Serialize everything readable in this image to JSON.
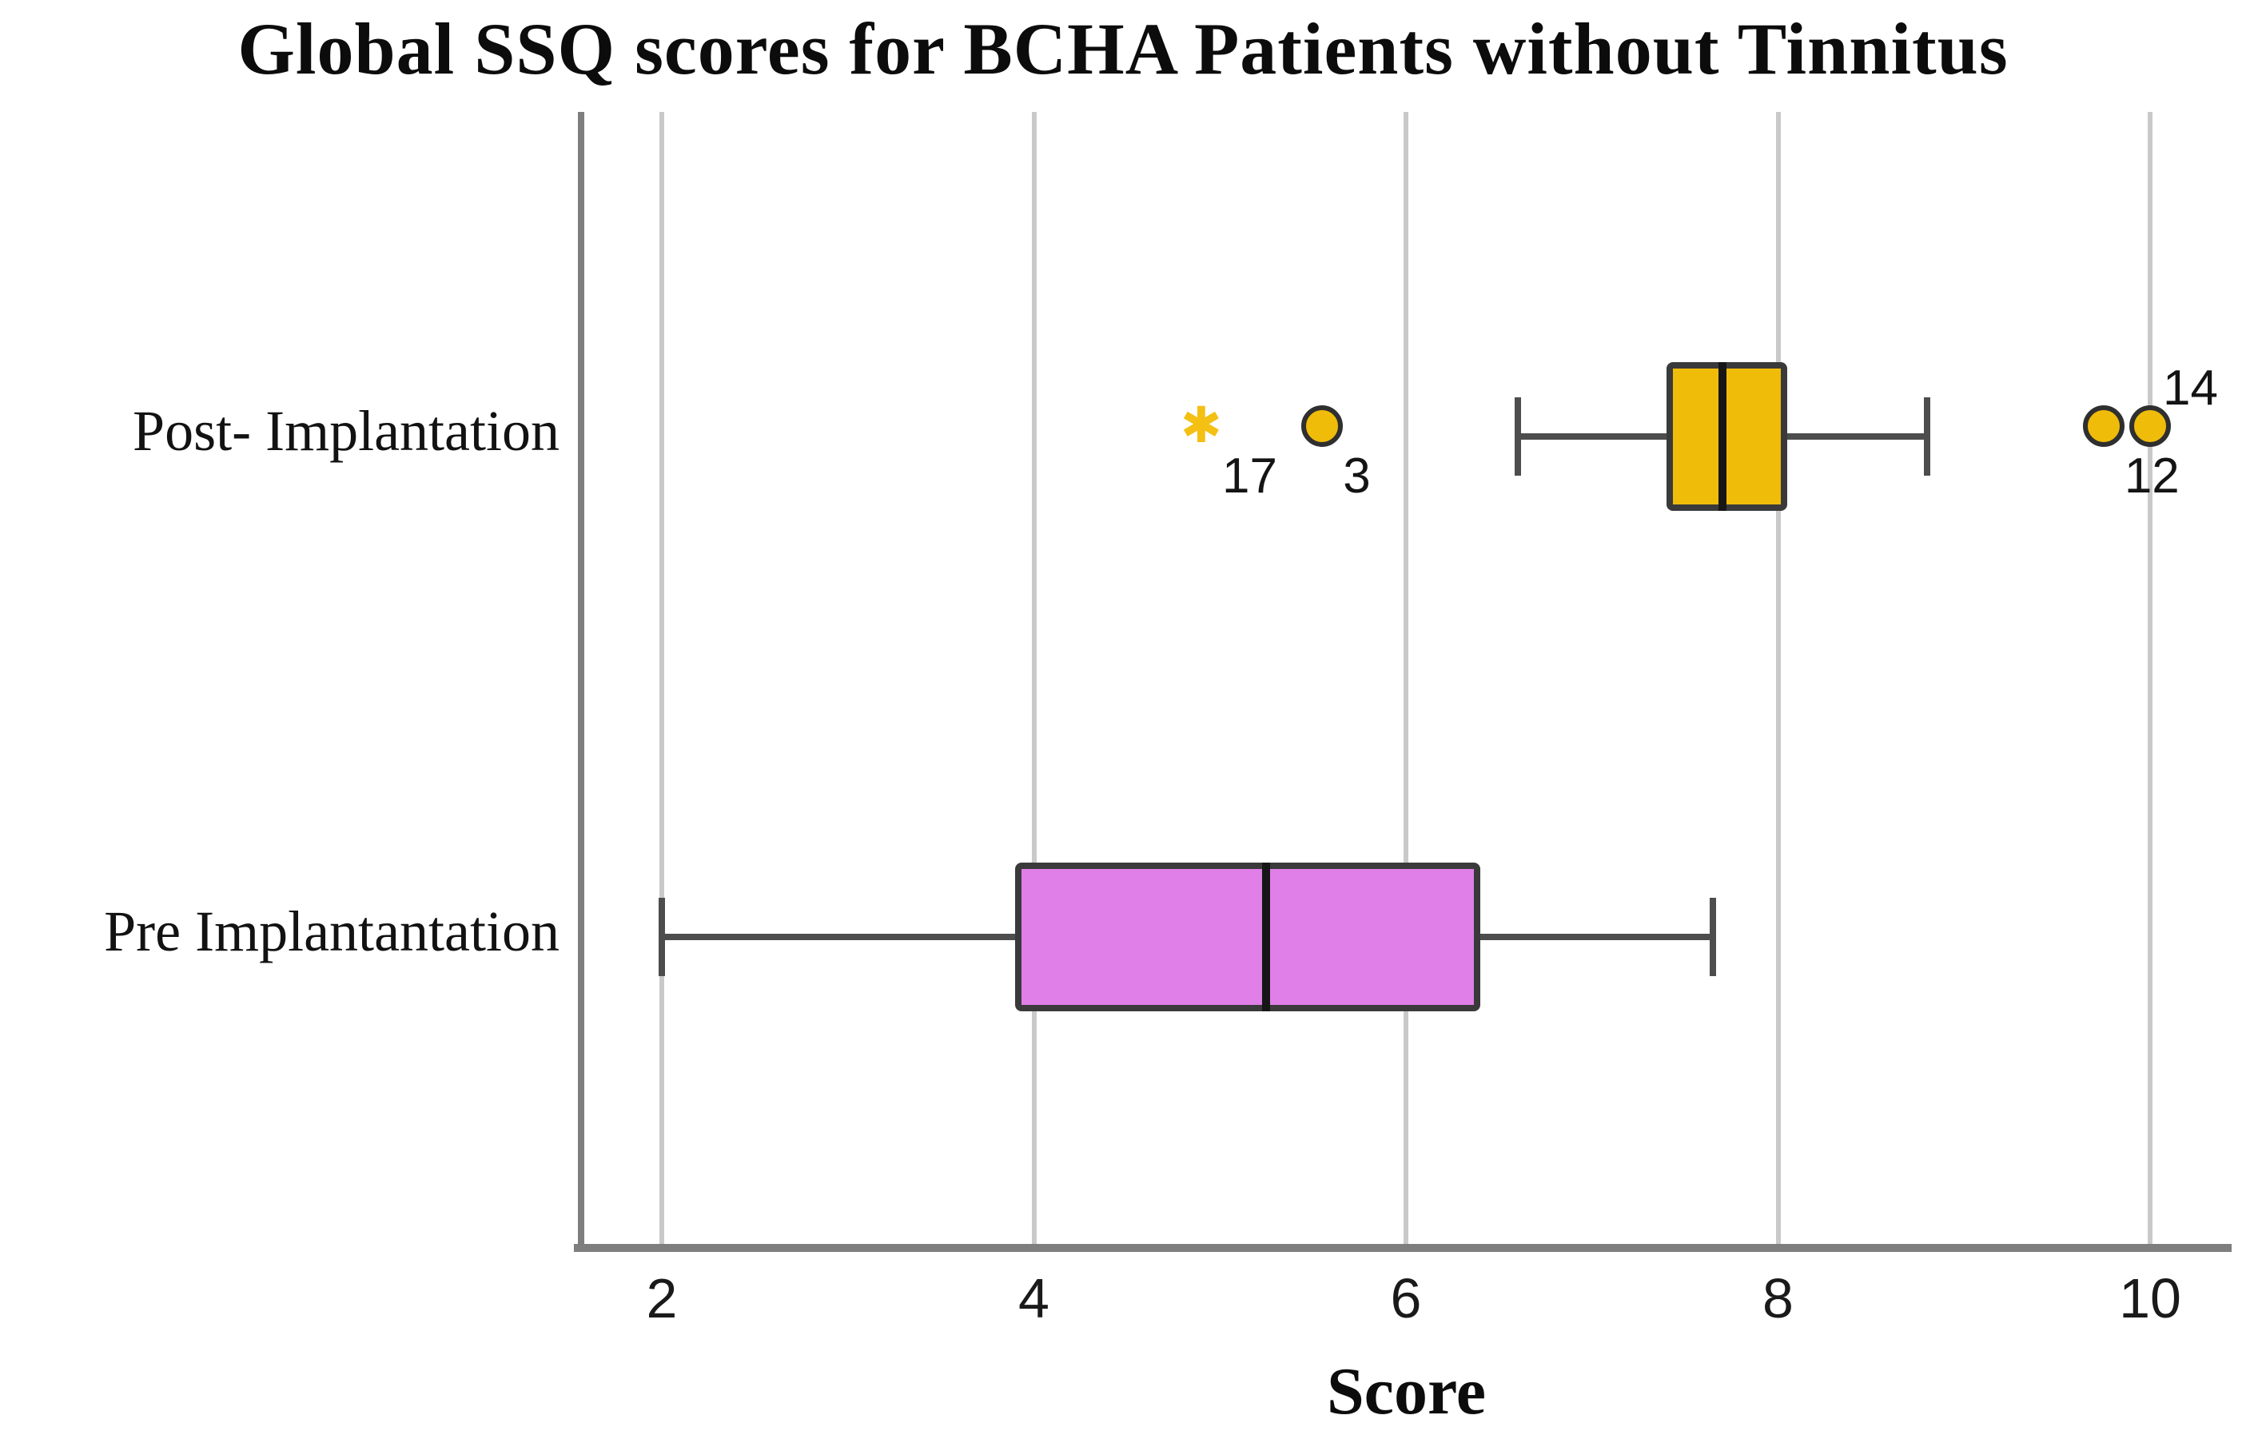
{
  "chart_data": {
    "type": "boxplot",
    "orientation": "horizontal",
    "title": "Global SSQ scores for BCHA Patients without Tinnitus",
    "xlabel": "Score",
    "x_axis": {
      "min": 1.55,
      "max": 10.45,
      "ticks": [
        "2",
        "4",
        "6",
        "8",
        "10"
      ],
      "tick_values": [
        2,
        4,
        6,
        8,
        10
      ],
      "grid": "vertical-gridlines-on"
    },
    "categories": [
      "Post- Implantation",
      "Pre Implantantation"
    ],
    "series": [
      {
        "name": "Post- Implantation",
        "box_color": "#F0BC0A",
        "whisker_low": 6.6,
        "q1": 7.4,
        "median": 7.7,
        "q3": 8.05,
        "whisker_high": 8.8,
        "outliers": [
          {
            "value": 4.9,
            "label": "17",
            "marker": "star-extreme-outlier",
            "label_side": "below-right"
          },
          {
            "value": 5.55,
            "label": "3",
            "marker": "circle-outlier",
            "label_side": "below-right"
          },
          {
            "value": 9.75,
            "label": "12",
            "marker": "circle-outlier",
            "label_side": "below-right"
          },
          {
            "value": 10.0,
            "label": "14",
            "marker": "circle-outlier",
            "label_side": "above-right"
          }
        ]
      },
      {
        "name": "Pre Implantantation",
        "box_color": "#E07FE8",
        "whisker_low": 2.0,
        "q1": 3.9,
        "median": 5.25,
        "q3": 6.4,
        "whisker_high": 7.65,
        "outliers": []
      }
    ]
  },
  "style": {
    "box_border_color": "#3A3A3A",
    "median_color": "#161616",
    "whisker_color": "#4D4D4D",
    "gridline_color": "#C9C9C9",
    "axis_color": "#7E7E7E",
    "star_color": "#F3C013",
    "outlier_fill": "#F0BC0A",
    "outlier_border": "#2F2F2F",
    "star_glyph": "✱"
  }
}
